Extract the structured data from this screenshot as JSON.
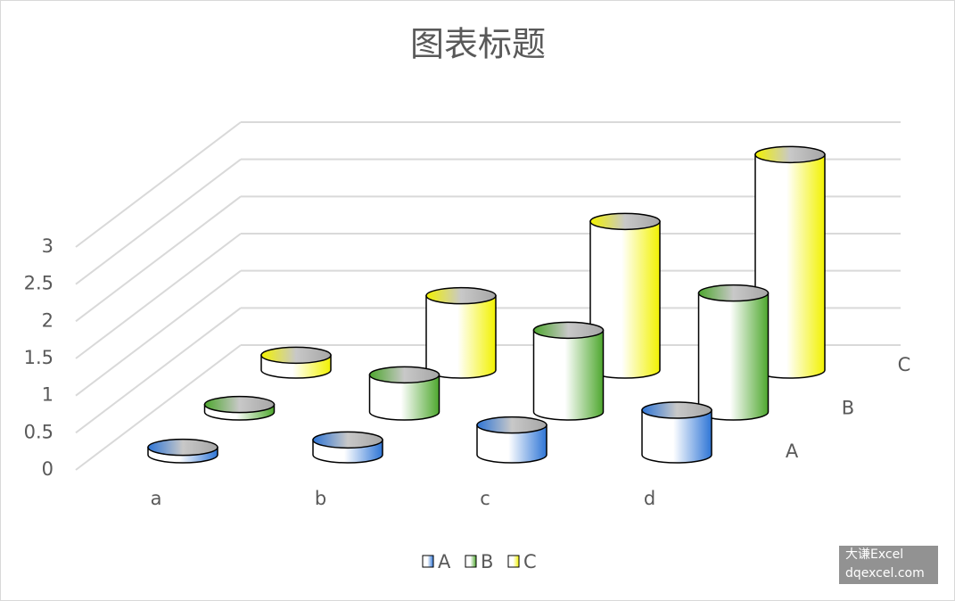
{
  "chart_data": {
    "type": "cylinder3d",
    "title": "图表标题",
    "categories": [
      "a",
      "b",
      "c",
      "d"
    ],
    "series": [
      {
        "name": "A",
        "color": "#2e75d6",
        "values": [
          0.1,
          0.2,
          0.4,
          0.6
        ]
      },
      {
        "name": "B",
        "color": "#4ea72e",
        "values": [
          0.1,
          0.5,
          1.1,
          1.6
        ]
      },
      {
        "name": "C",
        "color": "#f2f200",
        "values": [
          0.2,
          1.0,
          2.0,
          2.9
        ]
      }
    ],
    "ylim": [
      0,
      3
    ],
    "yticks": [
      0,
      0.5,
      1,
      1.5,
      2,
      2.5,
      3
    ],
    "grid": true,
    "legend": "bottom"
  },
  "watermark": {
    "line1": "大谦Excel",
    "line2": "dqexcel.com"
  }
}
